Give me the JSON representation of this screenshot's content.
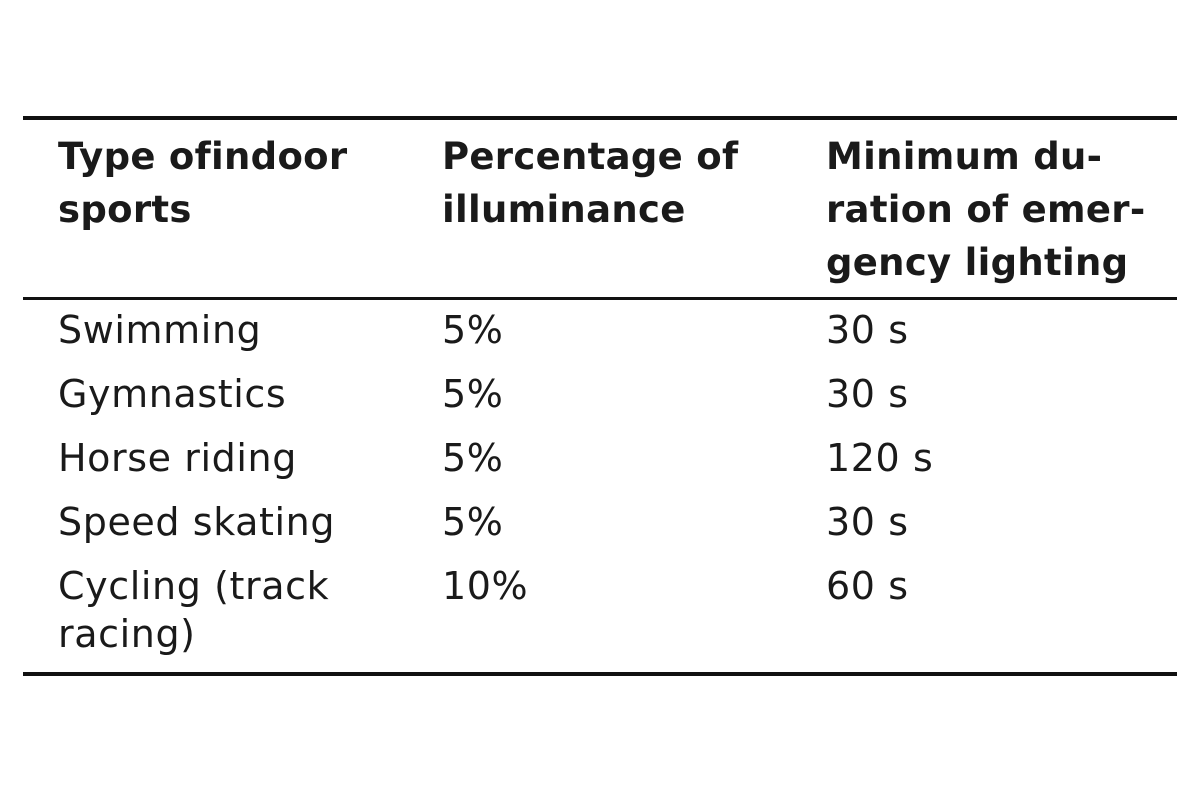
{
  "table": {
    "headers": [
      [
        "Type ofindoor",
        "sports"
      ],
      [
        "Percentage of",
        "illuminance"
      ],
      [
        "Minimum du-",
        "ration of emer-",
        "gency lighting"
      ]
    ],
    "rows": [
      {
        "sport": [
          "Swimming"
        ],
        "percentage": "5%",
        "duration": "30 s"
      },
      {
        "sport": [
          "Gymnastics"
        ],
        "percentage": "5%",
        "duration": "30 s"
      },
      {
        "sport": [
          "Horse riding"
        ],
        "percentage": "5%",
        "duration": "120 s"
      },
      {
        "sport": [
          "Speed skating"
        ],
        "percentage": "5%",
        "duration": "30 s"
      },
      {
        "sport": [
          "Cycling (track",
          "racing)"
        ],
        "percentage": "10%",
        "duration": "60 s"
      }
    ]
  }
}
